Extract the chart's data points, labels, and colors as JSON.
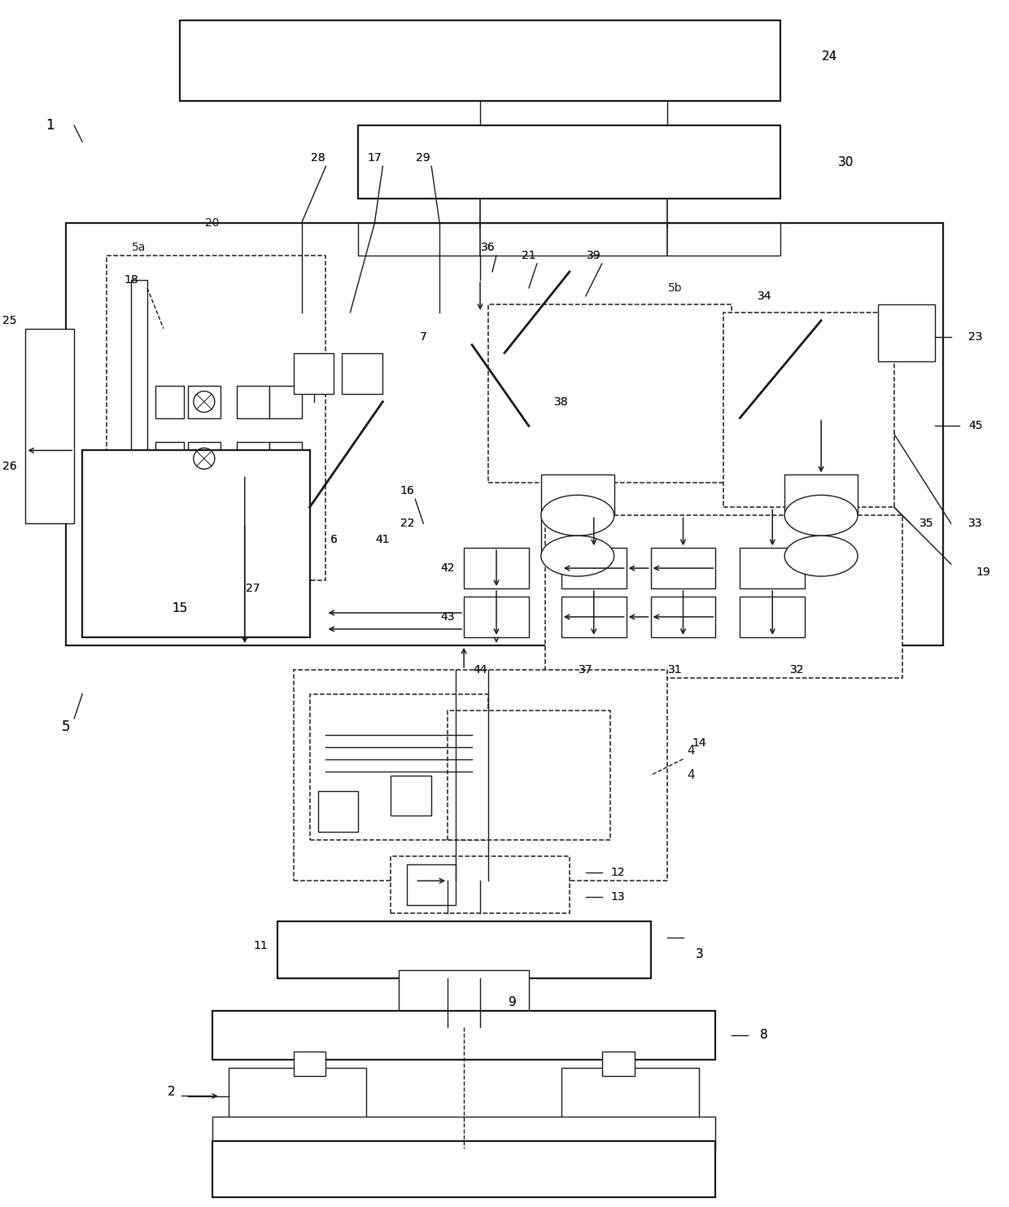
{
  "bg_color": "#ffffff",
  "line_color": "#1a1a1a",
  "fig_width": 12.4,
  "fig_height": 14.83
}
